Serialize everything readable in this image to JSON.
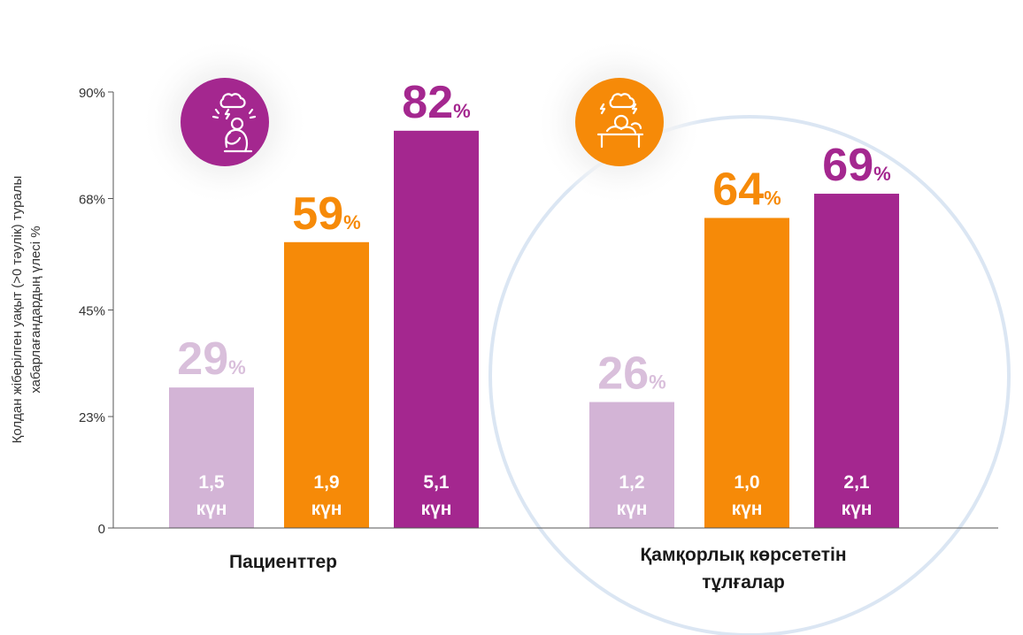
{
  "chart_data": {
    "type": "bar",
    "ylabel_lines": [
      "Қолдан жіберілген уақыт (>0 тәулік) туралы",
      "хабарлағандардың үлесі %"
    ],
    "y_ticks": [
      "90%",
      "68%",
      "45%",
      "23%",
      "0"
    ],
    "y_tick_values": [
      90,
      68,
      45,
      23,
      0
    ],
    "ylim": [
      0,
      90
    ],
    "grid": false,
    "groups": [
      {
        "label": "Пациенттер",
        "icon": "stressed-person-icon",
        "icon_color": "#a4278f",
        "bars": [
          {
            "value": 29,
            "value_label": "29",
            "unit": "%",
            "days": "1,5",
            "days_unit": "күн",
            "color": "#d3b4d6",
            "label_color": "#d9bfdb"
          },
          {
            "value": 59,
            "value_label": "59",
            "unit": "%",
            "days": "1,9",
            "days_unit": "күн",
            "color": "#f68a08",
            "label_color": "#f68a08"
          },
          {
            "value": 82,
            "value_label": "82",
            "unit": "%",
            "days": "5,1",
            "days_unit": "күн",
            "color": "#a4278f",
            "label_color": "#a4278f"
          }
        ]
      },
      {
        "label_lines": [
          "Қамқорлық көрсететін",
          "тұлғалар"
        ],
        "icon": "exhausted-caregiver-icon",
        "icon_color": "#f68a08",
        "bars": [
          {
            "value": 26,
            "value_label": "26",
            "unit": "%",
            "days": "1,2",
            "days_unit": "күн",
            "color": "#d3b4d6",
            "label_color": "#d9bfdb"
          },
          {
            "value": 64,
            "value_label": "64",
            "unit": "%",
            "days": "1,0",
            "days_unit": "күн",
            "color": "#f68a08",
            "label_color": "#f68a08"
          },
          {
            "value": 69,
            "value_label": "69",
            "unit": "%",
            "days": "2,1",
            "days_unit": "күн",
            "color": "#a4278f",
            "label_color": "#a4278f"
          }
        ]
      }
    ]
  }
}
